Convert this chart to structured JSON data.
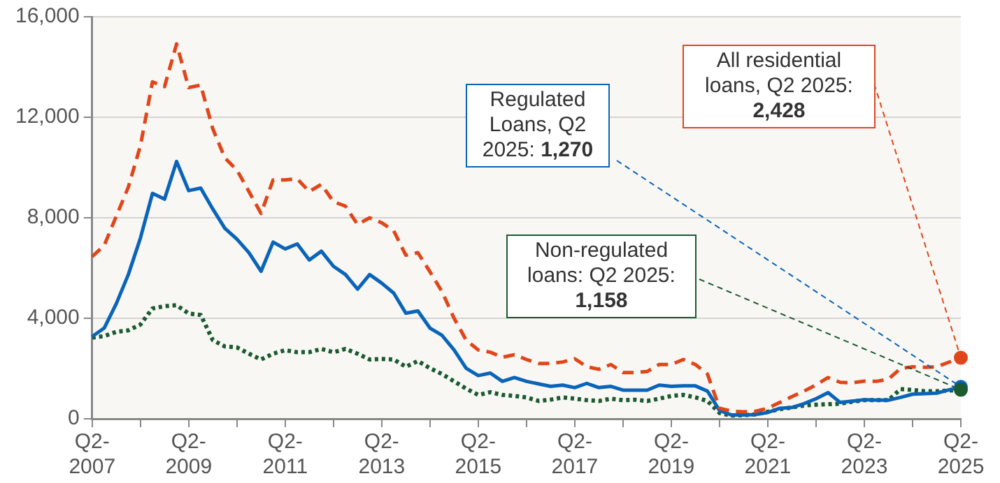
{
  "chart_data": {
    "type": "line",
    "categories": [
      "Q2-2007",
      null,
      null,
      null,
      null,
      null,
      null,
      null,
      "Q2-2009",
      null,
      null,
      null,
      null,
      null,
      null,
      null,
      "Q2-2011",
      null,
      null,
      null,
      null,
      null,
      null,
      null,
      "Q2-2013",
      null,
      null,
      null,
      null,
      null,
      null,
      null,
      "Q2-2015",
      null,
      null,
      null,
      null,
      null,
      null,
      null,
      "Q2-2017",
      null,
      null,
      null,
      null,
      null,
      null,
      null,
      "Q2-2019",
      null,
      null,
      null,
      null,
      null,
      null,
      null,
      "Q2-2021",
      null,
      null,
      null,
      null,
      null,
      null,
      null,
      "Q2-2023",
      null,
      null,
      null,
      null,
      null,
      null,
      null,
      "Q2-2025"
    ],
    "series": [
      {
        "color": "#e0461a",
        "line_style": "dashed",
        "values": [
          6450,
          6900,
          8060,
          9220,
          10860,
          13410,
          13220,
          14920,
          13180,
          13280,
          11540,
          10380,
          9900,
          9040,
          8170,
          9510,
          9510,
          9550,
          9040,
          9330,
          8640,
          8460,
          7730,
          8000,
          7800,
          7480,
          6510,
          6610,
          5850,
          5060,
          4000,
          3130,
          2740,
          2650,
          2450,
          2550,
          2360,
          2200,
          2200,
          2260,
          2390,
          2070,
          1970,
          2160,
          1840,
          1840,
          1880,
          2160,
          2160,
          2360,
          2160,
          1780,
          420,
          300,
          280,
          300,
          420,
          650,
          880,
          1100,
          1350,
          1640,
          1450,
          1430,
          1500,
          1490,
          1580,
          2000,
          2070,
          2050,
          2070,
          2250,
          2428
        ]
      },
      {
        "color": "#0a64b8",
        "line_style": "solid",
        "values": [
          3270,
          3610,
          4580,
          5740,
          7190,
          8970,
          8740,
          10240,
          9080,
          9180,
          8350,
          7580,
          7150,
          6610,
          5870,
          7030,
          6760,
          6960,
          6320,
          6670,
          6070,
          5740,
          5160,
          5740,
          5400,
          5000,
          4200,
          4290,
          3610,
          3320,
          2740,
          2010,
          1720,
          1820,
          1490,
          1640,
          1490,
          1390,
          1290,
          1340,
          1240,
          1410,
          1240,
          1290,
          1140,
          1140,
          1140,
          1340,
          1290,
          1310,
          1310,
          1100,
          330,
          150,
          150,
          170,
          250,
          420,
          450,
          600,
          800,
          1040,
          650,
          700,
          760,
          740,
          740,
          850,
          980,
          1000,
          1020,
          1150,
          1270
        ]
      },
      {
        "color": "#1c5a30",
        "line_style": "dotted",
        "values": [
          3230,
          3290,
          3460,
          3520,
          3750,
          4390,
          4480,
          4520,
          4190,
          4130,
          3130,
          2880,
          2840,
          2590,
          2360,
          2590,
          2730,
          2650,
          2650,
          2780,
          2650,
          2780,
          2590,
          2360,
          2380,
          2360,
          2070,
          2300,
          2010,
          1780,
          1490,
          1200,
          950,
          1060,
          950,
          910,
          850,
          710,
          760,
          850,
          800,
          740,
          710,
          800,
          740,
          760,
          710,
          800,
          910,
          950,
          850,
          710,
          230,
          130,
          140,
          180,
          280,
          380,
          450,
          530,
          560,
          580,
          600,
          680,
          740,
          740,
          740,
          1180,
          1150,
          1100,
          1100,
          1120,
          1158
        ]
      }
    ],
    "ylim": [
      0,
      16000
    ],
    "yticks": [
      0,
      {
        "value": 4000,
        "label": "4,000"
      },
      {
        "value": 8000,
        "label": "8,000"
      },
      {
        "value": 12000,
        "label": "12,000"
      },
      {
        "value": 16000,
        "label": "16,000"
      }
    ],
    "grid": "y",
    "legend": false,
    "marker": "none",
    "annotations": [
      {
        "text": "All residential loans, Q2 2025: 2,428",
        "x": "Q2-2025",
        "y": 2428
      },
      {
        "text": "Regulated Loans, Q2 2025: 1,270",
        "x": "Q2-2025",
        "y": 1270
      },
      {
        "text": "Non-regulated loans: Q2 2025: 1,158",
        "x": "Q2-2025",
        "y": 1158
      }
    ]
  }
}
